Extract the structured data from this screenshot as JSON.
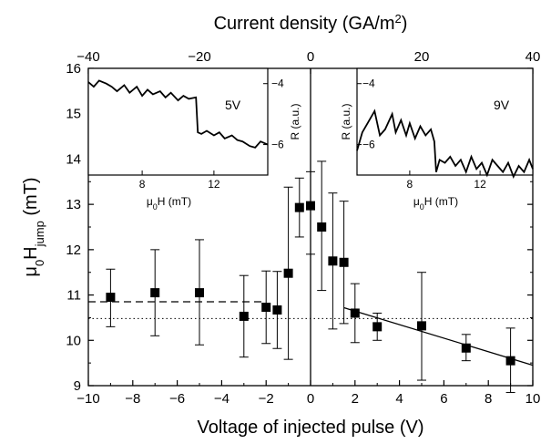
{
  "chart_data": {
    "type": "scatter",
    "main": {
      "xlabel": "Voltage of injected pulse (V)",
      "ylabel_prefix": "μ",
      "ylabel_sub0": "0",
      "ylabel_h": "H",
      "ylabel_sub": "jump",
      "ylabel_suffix": " (mT)",
      "xlim": [
        -10,
        10
      ],
      "ylim": [
        9,
        16
      ],
      "xticks": [
        -10,
        -8,
        -6,
        -4,
        -2,
        0,
        2,
        4,
        6,
        8,
        10
      ],
      "yticks": [
        9,
        10,
        11,
        12,
        13,
        14,
        15,
        16
      ],
      "top_axis": {
        "label_prefix": "Current density (GA/m",
        "label_sup": "2",
        "label_suffix": ")",
        "lim": [
          -40,
          40
        ],
        "ticks": [
          -40,
          -20,
          0,
          20,
          40
        ]
      },
      "points": [
        {
          "x": -9,
          "y": 10.95,
          "err_lo": 0.65,
          "err_hi": 0.62
        },
        {
          "x": -7,
          "y": 11.05,
          "err_lo": 0.95,
          "err_hi": 0.95
        },
        {
          "x": -5,
          "y": 11.05,
          "err_lo": 1.15,
          "err_hi": 1.17
        },
        {
          "x": -3,
          "y": 10.53,
          "err_lo": 0.9,
          "err_hi": 0.9
        },
        {
          "x": -2,
          "y": 10.73,
          "err_lo": 0.8,
          "err_hi": 0.8
        },
        {
          "x": -1.5,
          "y": 10.67,
          "err_lo": 0.85,
          "err_hi": 0.85
        },
        {
          "x": -1,
          "y": 11.48,
          "err_lo": 1.9,
          "err_hi": 1.9
        },
        {
          "x": -0.5,
          "y": 12.93,
          "err_lo": 0.65,
          "err_hi": 0.65
        },
        {
          "x": 0,
          "y": 12.97,
          "err_lo": 1.07,
          "err_hi": 0.75
        },
        {
          "x": 0.5,
          "y": 12.5,
          "err_lo": 1.4,
          "err_hi": 1.45
        },
        {
          "x": 1,
          "y": 11.75,
          "err_lo": 1.5,
          "err_hi": 1.5
        },
        {
          "x": 1.5,
          "y": 11.72,
          "err_lo": 1.35,
          "err_hi": 1.35
        },
        {
          "x": 2,
          "y": 10.6,
          "err_lo": 0.65,
          "err_hi": 0.65
        },
        {
          "x": 3,
          "y": 10.3,
          "err_lo": 0.3,
          "err_hi": 0.3
        },
        {
          "x": 5,
          "y": 10.32,
          "err_lo": 1.2,
          "err_hi": 1.18
        },
        {
          "x": 7,
          "y": 9.83,
          "err_lo": 0.28,
          "err_hi": 0.3
        },
        {
          "x": 9,
          "y": 9.55,
          "err_lo": 0.7,
          "err_hi": 0.72
        }
      ],
      "dashed_line": {
        "x": [
          -10,
          -2
        ],
        "y": [
          10.85,
          10.85
        ]
      },
      "dotted_line": {
        "x": [
          -10,
          10
        ],
        "y": [
          10.48,
          10.48
        ]
      },
      "fit_line": {
        "x": [
          1.5,
          10
        ],
        "y": [
          10.72,
          9.45
        ]
      },
      "vertical_line_x": 0
    },
    "insets": [
      {
        "id": "left",
        "label": "5V",
        "xlabel_prefix": "μ",
        "xlabel_sub": "0",
        "xlabel_suffix": "H (mT)",
        "ylabel": "R (a.u.)",
        "xlim": [
          5,
          15
        ],
        "ylim": [
          -7,
          -3.5
        ],
        "xticks": [
          8,
          12
        ],
        "yticks": [
          -4,
          -6
        ],
        "y_axis_side": "right",
        "x": [
          5,
          5.3,
          5.6,
          6,
          6.3,
          6.6,
          7,
          7.3,
          7.7,
          8,
          8.3,
          8.6,
          9,
          9.3,
          9.6,
          10,
          10.3,
          10.6,
          11,
          11.1,
          11.3,
          11.6,
          12,
          12.3,
          12.6,
          13,
          13.3,
          13.6,
          14,
          14.3,
          14.6,
          15
        ],
        "y": [
          -3.95,
          -4.1,
          -3.9,
          -4.0,
          -4.1,
          -4.25,
          -4.05,
          -4.3,
          -4.1,
          -4.4,
          -4.2,
          -4.35,
          -4.25,
          -4.45,
          -4.3,
          -4.55,
          -4.4,
          -4.5,
          -4.45,
          -5.6,
          -5.65,
          -5.55,
          -5.7,
          -5.6,
          -5.8,
          -5.7,
          -5.85,
          -5.9,
          -6.05,
          -6.1,
          -5.9,
          -6.0
        ]
      },
      {
        "id": "right",
        "label": "9V",
        "xlabel_prefix": "μ",
        "xlabel_sub": "0",
        "xlabel_suffix": "H (mT)",
        "ylabel": "R (a.u.)",
        "xlim": [
          5,
          15
        ],
        "ylim": [
          -7,
          -3.5
        ],
        "xticks": [
          8,
          12
        ],
        "yticks": [
          -4,
          -6
        ],
        "y_axis_side": "left",
        "x": [
          5,
          5.3,
          5.6,
          6,
          6.3,
          6.6,
          7,
          7.2,
          7.5,
          7.8,
          8,
          8.3,
          8.6,
          8.9,
          9.2,
          9.4,
          9.5,
          9.7,
          10,
          10.3,
          10.6,
          10.9,
          11.2,
          11.5,
          11.8,
          12.1,
          12.4,
          12.7,
          13,
          13.3,
          13.6,
          13.9,
          14.2,
          14.5,
          14.8,
          15
        ],
        "y": [
          -6.2,
          -5.6,
          -5.3,
          -4.9,
          -5.7,
          -5.5,
          -5.0,
          -5.6,
          -5.2,
          -5.7,
          -5.3,
          -5.8,
          -5.4,
          -5.7,
          -5.5,
          -5.9,
          -6.9,
          -6.5,
          -6.6,
          -6.4,
          -6.7,
          -6.5,
          -6.9,
          -6.4,
          -6.8,
          -6.6,
          -7.0,
          -6.5,
          -6.7,
          -6.9,
          -6.6,
          -7.05,
          -6.7,
          -6.9,
          -6.5,
          -6.8
        ]
      }
    ]
  }
}
